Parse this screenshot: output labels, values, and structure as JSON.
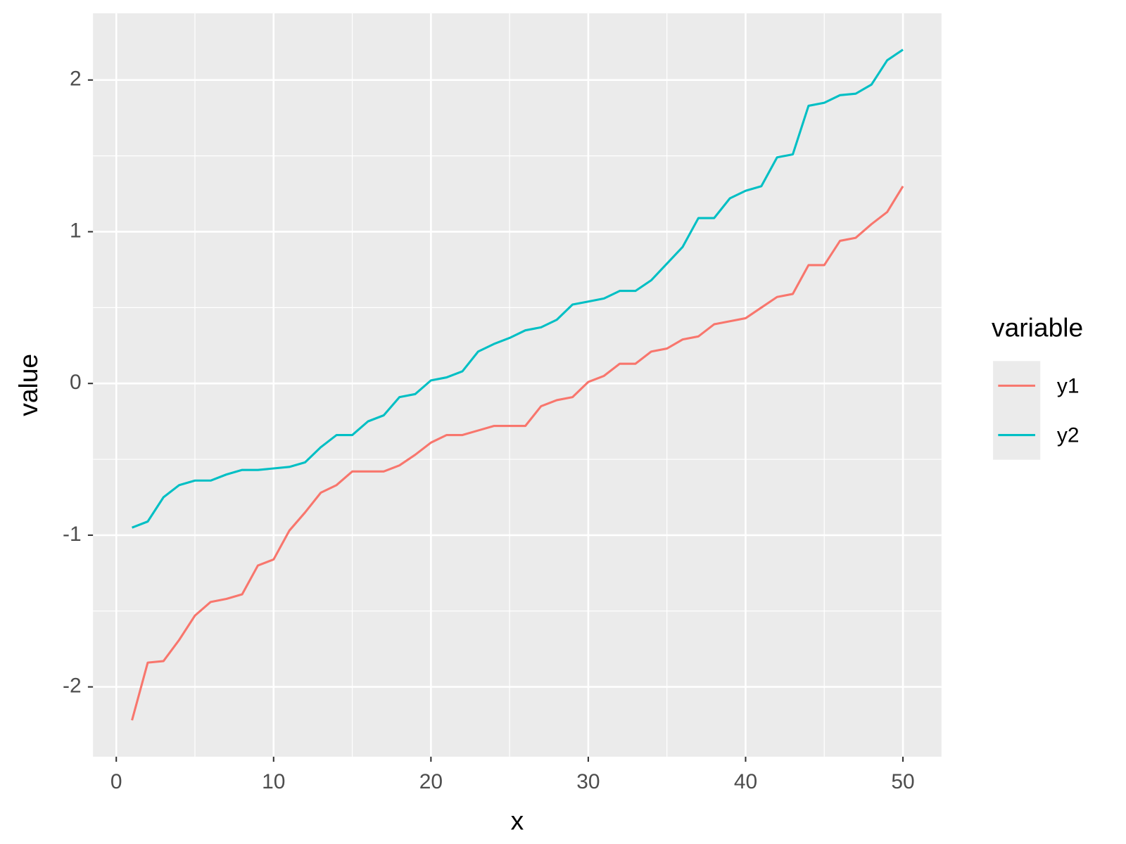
{
  "chart_data": {
    "type": "line",
    "x_label": "x",
    "y_label": "value",
    "legend_title": "variable",
    "x": [
      1,
      2,
      3,
      4,
      5,
      6,
      7,
      8,
      9,
      10,
      11,
      12,
      13,
      14,
      15,
      16,
      17,
      18,
      19,
      20,
      21,
      22,
      23,
      24,
      25,
      26,
      27,
      28,
      29,
      30,
      31,
      32,
      33,
      34,
      35,
      36,
      37,
      38,
      39,
      40,
      41,
      42,
      43,
      44,
      45,
      46,
      47,
      48,
      49,
      50
    ],
    "series": [
      {
        "name": "y1",
        "color": "#F8766D",
        "values": [
          -2.22,
          -1.84,
          -1.83,
          -1.69,
          -1.53,
          -1.44,
          -1.42,
          -1.39,
          -1.2,
          -1.16,
          -0.97,
          -0.85,
          -0.72,
          -0.67,
          -0.58,
          -0.58,
          -0.58,
          -0.54,
          -0.47,
          -0.39,
          -0.34,
          -0.34,
          -0.31,
          -0.28,
          -0.28,
          -0.28,
          -0.15,
          -0.11,
          -0.09,
          0.01,
          0.05,
          0.13,
          0.13,
          0.21,
          0.23,
          0.29,
          0.31,
          0.39,
          0.41,
          0.43,
          0.5,
          0.57,
          0.59,
          0.78,
          0.78,
          0.94,
          0.96,
          1.05,
          1.13,
          1.3
        ]
      },
      {
        "name": "y2",
        "color": "#00BFC4",
        "values": [
          -0.95,
          -0.91,
          -0.75,
          -0.67,
          -0.64,
          -0.64,
          -0.6,
          -0.57,
          -0.57,
          -0.56,
          -0.55,
          -0.52,
          -0.42,
          -0.34,
          -0.34,
          -0.25,
          -0.21,
          -0.09,
          -0.07,
          0.02,
          0.04,
          0.08,
          0.21,
          0.26,
          0.3,
          0.35,
          0.37,
          0.42,
          0.52,
          0.54,
          0.56,
          0.61,
          0.61,
          0.68,
          0.79,
          0.9,
          1.09,
          1.09,
          1.22,
          1.27,
          1.3,
          1.49,
          1.51,
          1.83,
          1.85,
          1.9,
          1.91,
          1.97,
          2.13,
          2.2
        ]
      }
    ],
    "xlim": [
      -1.48,
      52.45
    ],
    "ylim": [
      -2.46,
      2.44
    ],
    "xticks": [
      0,
      10,
      20,
      30,
      40,
      50
    ],
    "yticks": [
      -2,
      -1,
      0,
      1,
      2
    ],
    "xminor": [
      5,
      15,
      25,
      35,
      45
    ],
    "yminor": [
      -1.5,
      -0.5,
      0.5,
      1.5
    ],
    "grid": true,
    "legend": "right"
  }
}
